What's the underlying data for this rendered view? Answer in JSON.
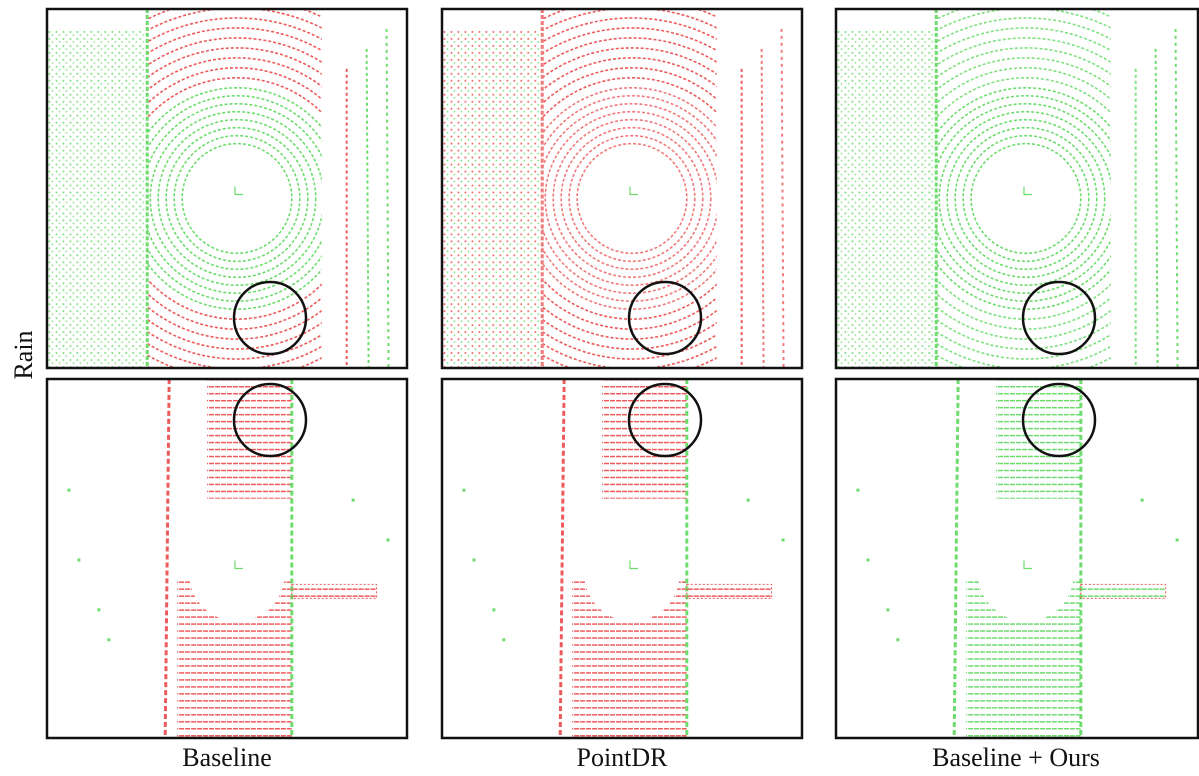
{
  "row_labels": [
    "Rain"
  ],
  "column_labels": [
    "Baseline",
    "PointDR",
    "Baseline + Ours"
  ]
}
